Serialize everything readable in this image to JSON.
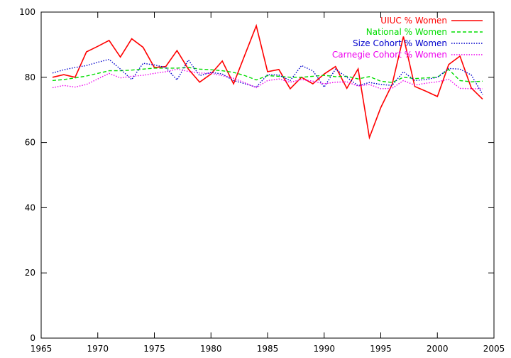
{
  "chart_data": {
    "type": "line",
    "title": "",
    "xlabel": "",
    "ylabel": "",
    "xlim": [
      1965,
      2005
    ],
    "ylim": [
      0,
      100
    ],
    "xticks": [
      1965,
      1970,
      1975,
      1980,
      1985,
      1990,
      1995,
      2000,
      2005
    ],
    "yticks": [
      0,
      20,
      40,
      60,
      80,
      100
    ],
    "grid": false,
    "legend_position": "top-right",
    "x": [
      1966,
      1967,
      1968,
      1969,
      1970,
      1971,
      1972,
      1973,
      1974,
      1975,
      1976,
      1977,
      1978,
      1979,
      1980,
      1981,
      1982,
      1983,
      1984,
      1985,
      1986,
      1987,
      1988,
      1989,
      1990,
      1991,
      1992,
      1993,
      1994,
      1995,
      1996,
      1997,
      1998,
      1999,
      2000,
      2001,
      2002,
      2003,
      2004
    ],
    "series": [
      {
        "name": "UIUC % Women",
        "color": "#ff0000",
        "dash": "solid",
        "values": [
          80,
          80.8,
          80,
          87.8,
          89.5,
          91.3,
          86.2,
          91.8,
          89.2,
          83,
          83.3,
          88.2,
          82.5,
          78.5,
          81,
          85,
          78,
          86.9,
          95.8,
          81.7,
          82.4,
          76.5,
          80,
          78,
          81,
          83.3,
          76.6,
          82.6,
          61.5,
          70.7,
          77.8,
          92.5,
          77.2,
          75.7,
          74.1,
          83.9,
          86.5,
          76.7,
          73.3
        ]
      },
      {
        "name": "National % Women",
        "color": "#00dd00",
        "dash": "dashed",
        "values": [
          79,
          79.3,
          79.8,
          80.4,
          81.2,
          82,
          82,
          82.2,
          82.5,
          82.8,
          82.8,
          82.8,
          83,
          82.5,
          82.3,
          82,
          81.5,
          80.5,
          79.2,
          80.5,
          80.3,
          80,
          80,
          80.3,
          80.6,
          80.2,
          80.3,
          79.5,
          80.2,
          78.8,
          78.4,
          80,
          79.6,
          79.8,
          80,
          82.4,
          79,
          78.6,
          78.8
        ]
      },
      {
        "name": "Size Cohort % Women",
        "color": "#0000cc",
        "dash": "dotted",
        "values": [
          81.3,
          82.3,
          83,
          83.6,
          84.6,
          85.5,
          82.5,
          79.3,
          84.3,
          83.8,
          83,
          79.2,
          85.3,
          80.5,
          81.5,
          81,
          79,
          78,
          77,
          80.8,
          80.7,
          79,
          83.6,
          82,
          77,
          82.5,
          80,
          77.4,
          78.4,
          77.8,
          77.5,
          81.7,
          79,
          79.3,
          80,
          82.7,
          82.5,
          80.7,
          74.7
        ]
      },
      {
        "name": "Carnegie Cohort % Women",
        "color": "#ee00ee",
        "dash": "dotted",
        "values": [
          76.8,
          77.5,
          77,
          77.8,
          79.5,
          81.2,
          79.8,
          80.3,
          80.6,
          81.2,
          81.7,
          82.5,
          81.8,
          81.3,
          81.2,
          80.5,
          79.7,
          78.3,
          76.8,
          79,
          79.5,
          78.5,
          79.3,
          78.8,
          78,
          78.5,
          78.6,
          77.3,
          77.8,
          76.5,
          76.6,
          79,
          77.6,
          78.2,
          78.6,
          79.4,
          76.6,
          76.5,
          76.5
        ]
      }
    ]
  }
}
